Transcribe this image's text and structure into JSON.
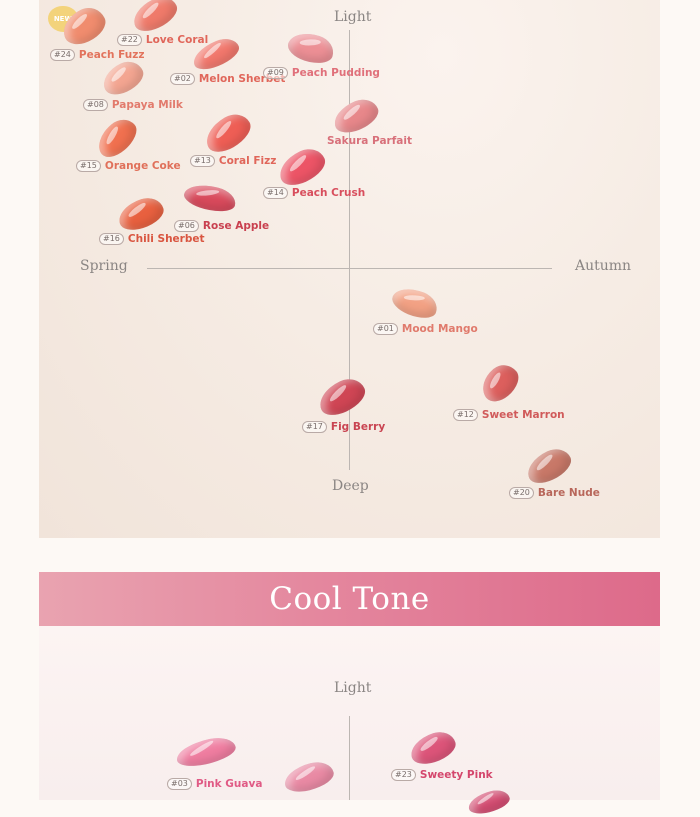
{
  "warm_chart": {
    "axes": {
      "top": "Light",
      "bottom": "Deep",
      "left": "Spring",
      "right": "Autumn"
    },
    "new_badge": "NEW",
    "shades": [
      {
        "code": "#24",
        "name": "Peach Fuzz",
        "color": "#f08c6e",
        "text_color": "#e2735c"
      },
      {
        "code": "#22",
        "name": "Love Coral",
        "color": "#ef7a6a",
        "text_color": "#e0665a"
      },
      {
        "code": "#02",
        "name": "Melon Sherbet",
        "color": "#f1776c",
        "text_color": "#e0665a"
      },
      {
        "code": "#09",
        "name": "Peach Pudding",
        "color": "#ec8f95",
        "text_color": "#e0707a"
      },
      {
        "code": "#08",
        "name": "Papaya Milk",
        "color": "#f3a591",
        "text_color": "#e27a6c"
      },
      {
        "code": "#15",
        "name": "Orange Coke",
        "color": "#f0704f",
        "text_color": "#e0705a"
      },
      {
        "code": "#13",
        "name": "Coral Fizz",
        "color": "#ee5e55",
        "text_color": "#e0665a"
      },
      {
        "code": "#14",
        "name": "Peach Crush",
        "color": "#ec5466",
        "text_color": "#d84e5d"
      },
      {
        "code": "#06",
        "name": "Rose Apple",
        "color": "#d94a5c",
        "text_color": "#c9404f"
      },
      {
        "code": "#16",
        "name": "Chili Sherbet",
        "color": "#e8603f",
        "text_color": "#d95540"
      },
      {
        "code": "",
        "name": "Sakura Parfait",
        "color": "#e7878a",
        "text_color": "#d8707a"
      },
      {
        "code": "#01",
        "name": "Mood Mango",
        "color": "#f2a184",
        "text_color": "#e07a6c"
      },
      {
        "code": "#17",
        "name": "Fig Berry",
        "color": "#cf4554",
        "text_color": "#c94452"
      },
      {
        "code": "#12",
        "name": "Sweet Marron",
        "color": "#dc5f5d",
        "text_color": "#d05a5a"
      },
      {
        "code": "#20",
        "name": "Bare Nude",
        "color": "#c87868",
        "text_color": "#b8665a"
      }
    ]
  },
  "cool_banner": {
    "title": "Cool Tone"
  },
  "cool_chart": {
    "axes": {
      "top": "Light"
    },
    "shades": [
      {
        "code": "#03",
        "name": "Pink Guava",
        "color": "#ef7da0",
        "text_color": "#e05a85"
      },
      {
        "code": "#23",
        "name": "Sweety Pink",
        "color": "#dc5479",
        "text_color": "#d4466c"
      },
      {
        "code": "",
        "name": "",
        "color": "#e98aa4",
        "text_color": "#e05a85"
      },
      {
        "code": "",
        "name": "",
        "color": "#d44d72",
        "text_color": "#d4466c"
      }
    ]
  }
}
